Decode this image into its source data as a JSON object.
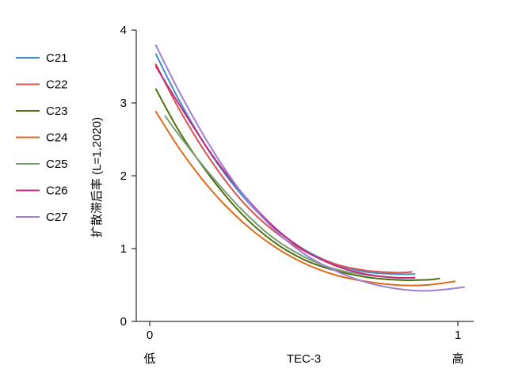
{
  "chart_data": {
    "type": "line",
    "title": "",
    "xlabel": "TEC-3",
    "ylabel": "扩散滞后率 (L=1,2020)",
    "xlim": [
      -0.04,
      1.06
    ],
    "ylim": [
      0,
      4
    ],
    "xticks": [
      {
        "value": 0,
        "label": "0",
        "sublabel": "低"
      },
      {
        "value": 1,
        "label": "1",
        "sublabel": "高"
      }
    ],
    "yticks": [
      0,
      1,
      2,
      3,
      4
    ],
    "grid": false,
    "legend_position": "left",
    "series": [
      {
        "name": "C21",
        "color": "#3b8fcb",
        "x": [
          0.02,
          0.1,
          0.2,
          0.3,
          0.4,
          0.5,
          0.6,
          0.7,
          0.8,
          0.86
        ],
        "y": [
          3.67,
          3.0,
          2.29,
          1.73,
          1.3,
          0.99,
          0.79,
          0.68,
          0.65,
          0.65
        ]
      },
      {
        "name": "C22",
        "color": "#d9534f",
        "x": [
          0.02,
          0.1,
          0.2,
          0.3,
          0.4,
          0.5,
          0.6,
          0.7,
          0.8,
          0.85
        ],
        "y": [
          3.53,
          2.88,
          2.2,
          1.65,
          1.25,
          0.97,
          0.79,
          0.7,
          0.67,
          0.68
        ]
      },
      {
        "name": "C23",
        "color": "#4f6f12",
        "x": [
          0.02,
          0.1,
          0.2,
          0.3,
          0.4,
          0.5,
          0.6,
          0.7,
          0.8,
          0.9,
          0.94
        ],
        "y": [
          3.19,
          2.58,
          1.97,
          1.47,
          1.1,
          0.85,
          0.7,
          0.61,
          0.57,
          0.57,
          0.59
        ]
      },
      {
        "name": "C24",
        "color": "#e06a1c",
        "x": [
          0.02,
          0.1,
          0.2,
          0.3,
          0.4,
          0.5,
          0.6,
          0.7,
          0.8,
          0.9,
          0.99
        ],
        "y": [
          2.88,
          2.35,
          1.8,
          1.37,
          1.04,
          0.8,
          0.64,
          0.55,
          0.5,
          0.5,
          0.55
        ]
      },
      {
        "name": "C25",
        "color": "#789e74",
        "x": [
          0.05,
          0.1,
          0.2,
          0.3,
          0.4,
          0.5,
          0.6,
          0.7,
          0.8,
          0.86
        ],
        "y": [
          2.82,
          2.53,
          2.0,
          1.53,
          1.15,
          0.89,
          0.72,
          0.64,
          0.6,
          0.6
        ]
      },
      {
        "name": "C26",
        "color": "#c1287e",
        "x": [
          0.02,
          0.1,
          0.2,
          0.3,
          0.4,
          0.5,
          0.6,
          0.7,
          0.8,
          0.86
        ],
        "y": [
          3.5,
          2.95,
          2.3,
          1.76,
          1.31,
          0.98,
          0.77,
          0.65,
          0.6,
          0.6
        ]
      },
      {
        "name": "C27",
        "color": "#9d7fd6",
        "x": [
          0.02,
          0.1,
          0.2,
          0.3,
          0.4,
          0.5,
          0.6,
          0.7,
          0.8,
          0.9,
          1.02
        ],
        "y": [
          3.79,
          3.12,
          2.38,
          1.76,
          1.28,
          0.93,
          0.7,
          0.54,
          0.45,
          0.42,
          0.47
        ]
      }
    ]
  }
}
